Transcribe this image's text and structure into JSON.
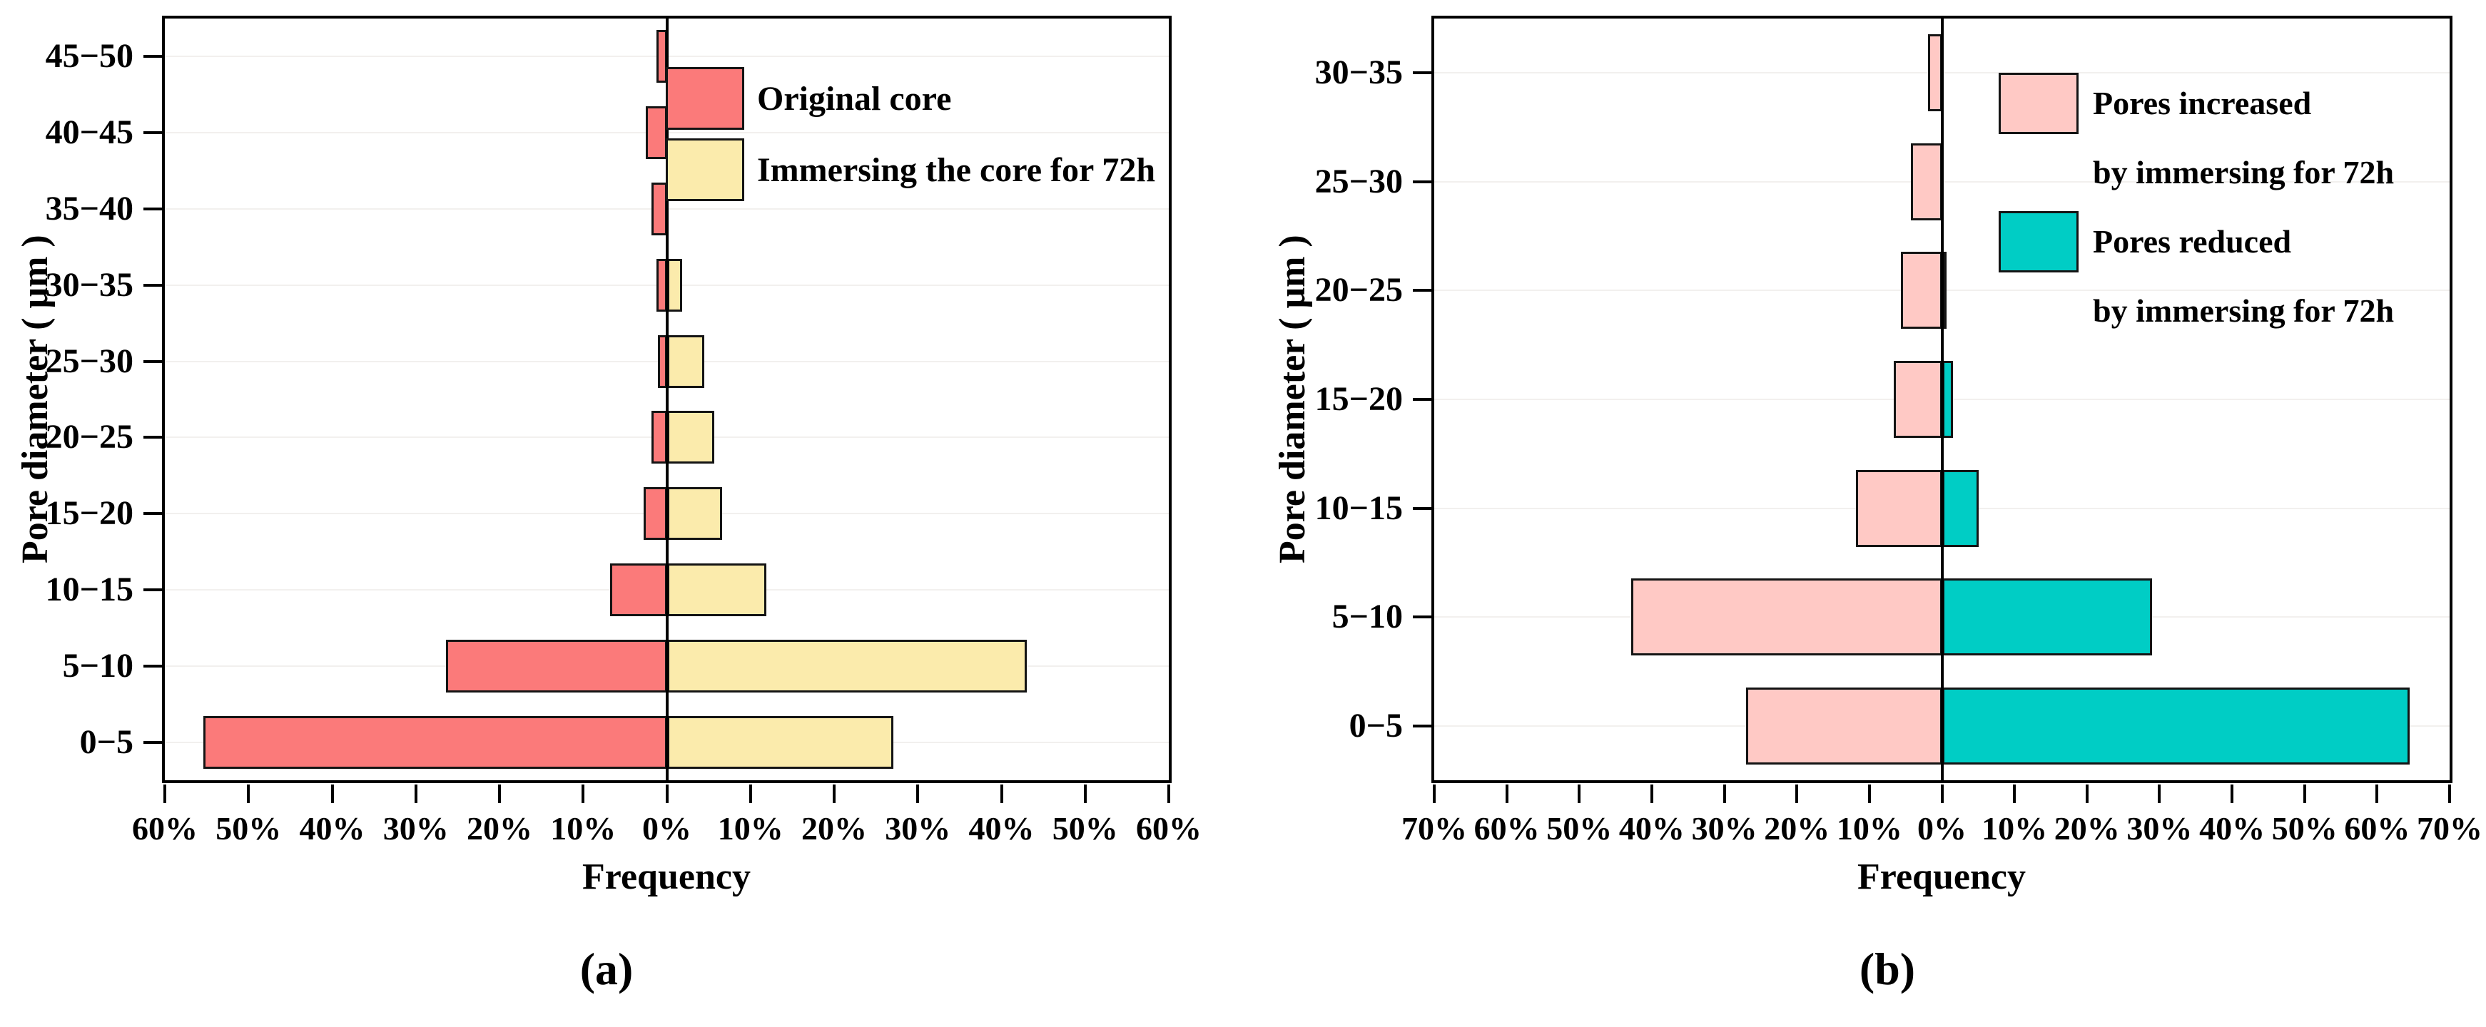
{
  "figure": {
    "caption_a": "(a)",
    "caption_b": "(b)"
  },
  "chart_data": [
    {
      "id": "a",
      "type": "bar",
      "subtype": "mirrored-horizontal-pyramid",
      "title": "",
      "xlabel": "Frequency",
      "ylabel": "Pore diameter ( μm )",
      "categories_order": "top-to-bottom",
      "categories": [
        "45−50",
        "40−45",
        "35−40",
        "30−35",
        "25−30",
        "20−25",
        "15−20",
        "10−15",
        "5−10",
        "0−5"
      ],
      "axis_max_percent": 60,
      "xticks": [
        "60%",
        "50%",
        "40%",
        "30%",
        "20%",
        "10%",
        "0%",
        "10%",
        "20%",
        "30%",
        "40%",
        "50%",
        "60%"
      ],
      "grid": "faint-horizontal",
      "legend_position": "top-right-inside",
      "series": [
        {
          "name": "Original core",
          "side": "left",
          "color": "#FB7A7A",
          "values_percent": [
            1.2,
            2.5,
            1.8,
            1.2,
            1.1,
            1.8,
            2.8,
            6.8,
            26.4,
            55.4
          ]
        },
        {
          "name": "Immersing the core for 72h",
          "side": "right",
          "color": "#FBEBAC",
          "values_percent": [
            0,
            0,
            0,
            1.8,
            4.5,
            5.7,
            6.6,
            11.9,
            43.0,
            27.1
          ]
        }
      ]
    },
    {
      "id": "b",
      "type": "bar",
      "subtype": "mirrored-horizontal-pyramid",
      "title": "",
      "xlabel": "Frequency",
      "ylabel": "Pore diameter ( μm )",
      "categories_order": "top-to-bottom",
      "categories": [
        "30−35",
        "25−30",
        "20−25",
        "15−20",
        "10−15",
        "5−10",
        "0−5"
      ],
      "axis_max_percent": 70,
      "xticks": [
        "70%",
        "60%",
        "50%",
        "40%",
        "30%",
        "20%",
        "10%",
        "0%",
        "10%",
        "20%",
        "30%",
        "40%",
        "50%",
        "60%",
        "70%"
      ],
      "grid": "faint-horizontal",
      "legend_position": "top-right-inside",
      "series": [
        {
          "name": "Pores increased by immersing for 72h",
          "name_lines": [
            "Pores increased",
            "by immersing for 72h"
          ],
          "side": "left",
          "color": "#FFC9C5",
          "values_percent": [
            1.9,
            4.3,
            5.7,
            6.6,
            11.9,
            42.8,
            27.0
          ]
        },
        {
          "name": "Pores reduced by immersing for 72h",
          "name_lines": [
            "Pores reduced",
            "by immersing for 72h"
          ],
          "side": "right",
          "color": "#00CDC5",
          "values_percent": [
            0,
            0,
            0.5,
            1.5,
            5.1,
            29.0,
            64.5
          ]
        }
      ]
    }
  ]
}
